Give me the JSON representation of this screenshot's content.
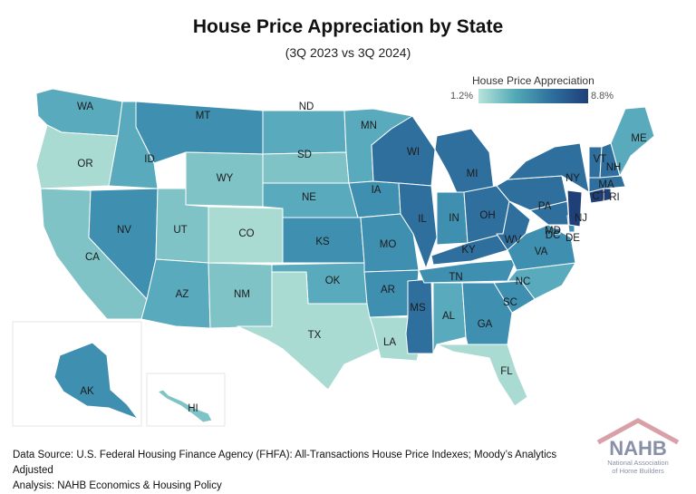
{
  "header": {
    "title": "House Price Appreciation by State",
    "subtitle": "(3Q 2023 vs 3Q 2024)"
  },
  "legend": {
    "title": "House Price Appreciation",
    "min_label": "1.2%",
    "max_label": "8.8%",
    "colors": [
      "#b9e3dc",
      "#52aab6",
      "#2f6f9d",
      "#1f3f78"
    ]
  },
  "states": [
    {
      "code": "WA",
      "tier": 3
    },
    {
      "code": "OR",
      "tier": 1
    },
    {
      "code": "CA",
      "tier": 2
    },
    {
      "code": "ID",
      "tier": 3
    },
    {
      "code": "NV",
      "tier": 4
    },
    {
      "code": "MT",
      "tier": 4
    },
    {
      "code": "WY",
      "tier": 2
    },
    {
      "code": "UT",
      "tier": 2
    },
    {
      "code": "AZ",
      "tier": 3
    },
    {
      "code": "CO",
      "tier": 1
    },
    {
      "code": "NM",
      "tier": 2
    },
    {
      "code": "ND",
      "tier": 3
    },
    {
      "code": "SD",
      "tier": 2
    },
    {
      "code": "NE",
      "tier": 3
    },
    {
      "code": "KS",
      "tier": 4
    },
    {
      "code": "OK",
      "tier": 3
    },
    {
      "code": "TX",
      "tier": 1
    },
    {
      "code": "MN",
      "tier": 3
    },
    {
      "code": "IA",
      "tier": 4
    },
    {
      "code": "MO",
      "tier": 4
    },
    {
      "code": "AR",
      "tier": 4
    },
    {
      "code": "LA",
      "tier": 1
    },
    {
      "code": "WI",
      "tier": 5
    },
    {
      "code": "IL",
      "tier": 5
    },
    {
      "code": "MS",
      "tier": 5
    },
    {
      "code": "MI",
      "tier": 5
    },
    {
      "code": "IN",
      "tier": 4
    },
    {
      "code": "KY",
      "tier": 5
    },
    {
      "code": "TN",
      "tier": 4
    },
    {
      "code": "AL",
      "tier": 3
    },
    {
      "code": "OH",
      "tier": 5
    },
    {
      "code": "GA",
      "tier": 4
    },
    {
      "code": "FL",
      "tier": 1
    },
    {
      "code": "SC",
      "tier": 4
    },
    {
      "code": "NC",
      "tier": 3
    },
    {
      "code": "VA",
      "tier": 4
    },
    {
      "code": "WV",
      "tier": 5
    },
    {
      "code": "PA",
      "tier": 5
    },
    {
      "code": "NY",
      "tier": 5
    },
    {
      "code": "MD",
      "tier": 5
    },
    {
      "code": "DE",
      "tier": 4
    },
    {
      "code": "NJ",
      "tier": 6
    },
    {
      "code": "DC",
      "tier": 5
    },
    {
      "code": "CT",
      "tier": 6
    },
    {
      "code": "RI",
      "tier": 6
    },
    {
      "code": "MA",
      "tier": 5
    },
    {
      "code": "VT",
      "tier": 5
    },
    {
      "code": "NH",
      "tier": 5
    },
    {
      "code": "ME",
      "tier": 3
    },
    {
      "code": "AK",
      "tier": 4
    },
    {
      "code": "HI",
      "tier": 2
    }
  ],
  "tier_colors": {
    "1": "#a9dbd2",
    "2": "#7fc3c6",
    "3": "#5aaabd",
    "4": "#3f8fb0",
    "5": "#2f6f9d",
    "6": "#1f3f78"
  },
  "footer": {
    "line1": "Data Source: U.S. Federal Housing Finance Agency (FHFA): All-Transactions House Price Indexes; Moody’s Analytics Adjusted",
    "line2": "Analysis: NAHB Economics & Housing Policy"
  },
  "logo": {
    "wordmark": "NAHB",
    "line1": "National Association",
    "line2": "of Home Builders",
    "roof_color": "#d9a0a8",
    "text_color": "#8a8fa8"
  }
}
